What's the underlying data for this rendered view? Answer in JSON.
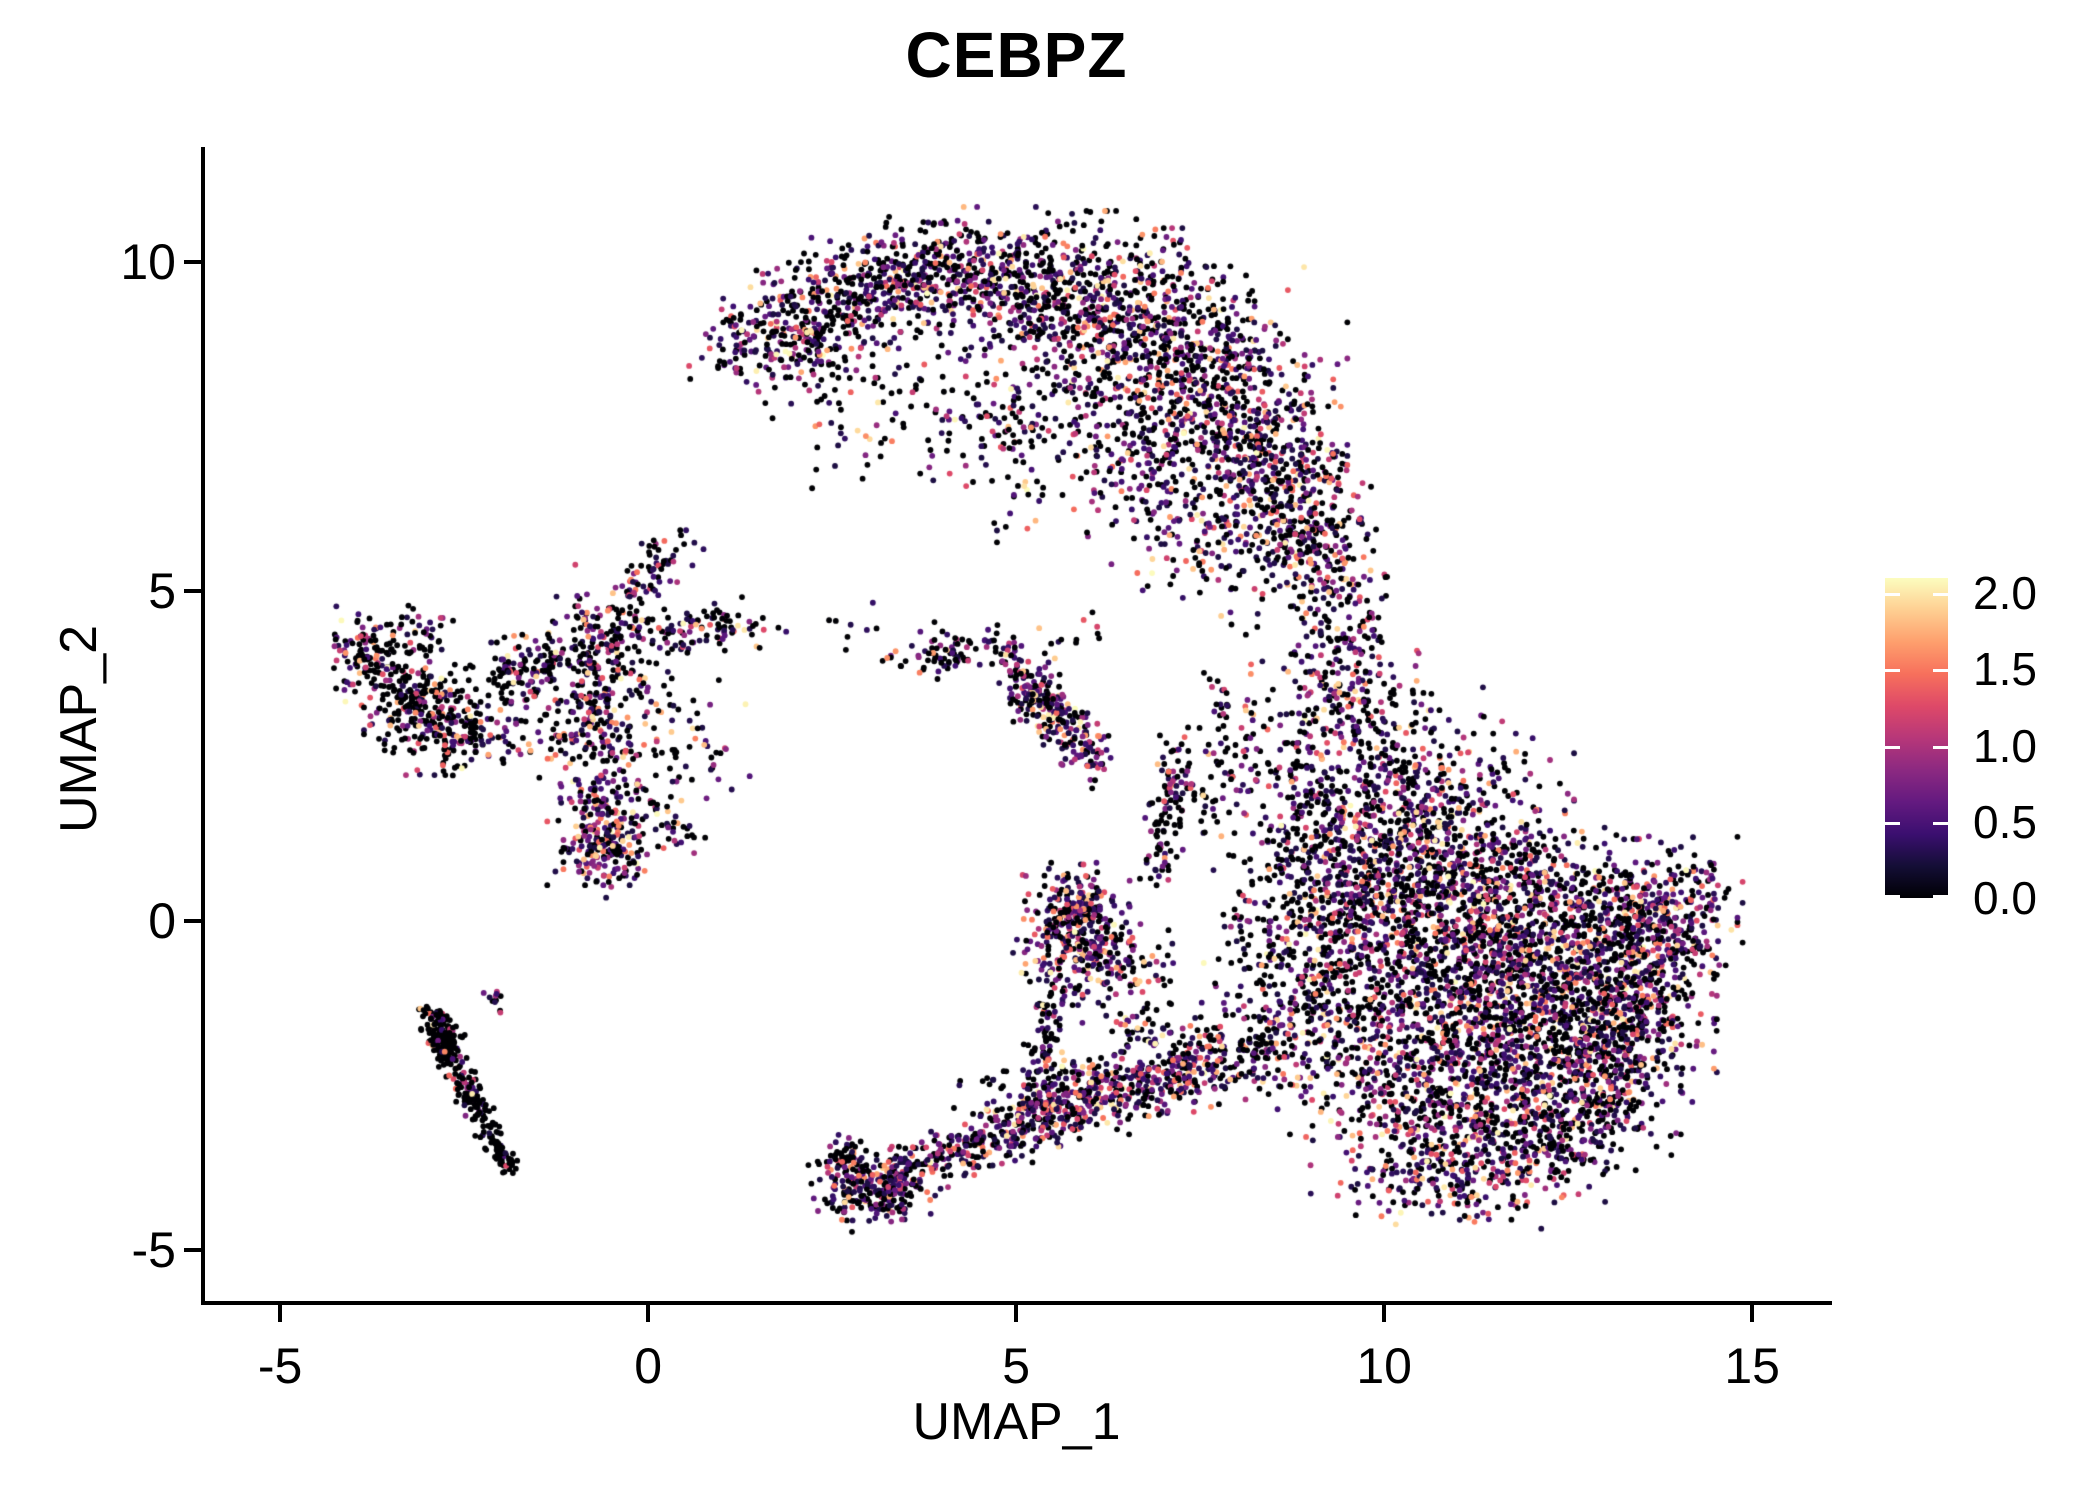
{
  "figure": {
    "title": "CEBPZ"
  },
  "colors": {
    "background": "#ffffff",
    "axis": "#000000",
    "text": "#000000",
    "colorbar_tick": "#ffffff"
  },
  "chart_data": {
    "type": "scatter",
    "title": "CEBPZ",
    "xlabel": "UMAP_1",
    "ylabel": "UMAP_2",
    "grid": false,
    "x_range": [
      -6.02,
      16.03
    ],
    "y_range": [
      -5.8,
      11.74
    ],
    "x_ticks": [
      {
        "label": "-5",
        "value": -5
      },
      {
        "label": "0",
        "value": 0
      },
      {
        "label": "5",
        "value": 5
      },
      {
        "label": "10",
        "value": 10
      },
      {
        "label": "15",
        "value": 15
      }
    ],
    "y_ticks": [
      {
        "label": "-5",
        "value": -5
      },
      {
        "label": "0",
        "value": 0
      },
      {
        "label": "5",
        "value": 5
      },
      {
        "label": "10",
        "value": 10
      }
    ],
    "colorbar": {
      "position": "right",
      "colormap": "magma",
      "vmin": 0.0,
      "vmax": 2.1,
      "ticks": [
        {
          "label": "0.0",
          "value": 0.0
        },
        {
          "label": "0.5",
          "value": 0.5
        },
        {
          "label": "1.0",
          "value": 1.0
        },
        {
          "label": "1.5",
          "value": 1.5
        },
        {
          "label": "2.0",
          "value": 2.0
        }
      ]
    },
    "palette_stops": [
      "#000004",
      "#140e36",
      "#3b0f70",
      "#641a80",
      "#8c2981",
      "#b73779",
      "#de4968",
      "#f7705c",
      "#fe9f6d",
      "#fecf92",
      "#fcfdbf"
    ],
    "point": {
      "radius_px": 2.9,
      "zero_color": "#000004"
    },
    "seed": 42,
    "value_dist": {
      "vmin": 0.25,
      "vmax": 2.1,
      "power": 2.2
    },
    "clusters": [
      {
        "k": "b",
        "p": [
          1.35,
          8.75,
          0.35,
          0.3
        ],
        "n": 90,
        "p0": 0.42
      },
      {
        "k": "b",
        "p": [
          2.1,
          9.2,
          0.45,
          0.4
        ],
        "n": 160,
        "p0": 0.42
      },
      {
        "k": "b",
        "p": [
          2.9,
          9.55,
          0.5,
          0.38
        ],
        "n": 180,
        "p0": 0.42
      },
      {
        "k": "b",
        "p": [
          3.8,
          9.8,
          0.55,
          0.4
        ],
        "n": 220,
        "p0": 0.42
      },
      {
        "k": "b",
        "p": [
          4.8,
          9.75,
          0.6,
          0.45
        ],
        "n": 260,
        "p0": 0.42
      },
      {
        "k": "b",
        "p": [
          5.8,
          9.45,
          0.6,
          0.55
        ],
        "n": 300,
        "p0": 0.42
      },
      {
        "k": "b",
        "p": [
          6.8,
          8.95,
          0.6,
          0.65
        ],
        "n": 320,
        "p0": 0.42
      },
      {
        "k": "b",
        "p": [
          7.6,
          8.25,
          0.55,
          0.7
        ],
        "n": 300,
        "p0": 0.42
      },
      {
        "k": "b",
        "p": [
          8.3,
          7.4,
          0.5,
          0.7
        ],
        "n": 280,
        "p0": 0.42
      },
      {
        "k": "b",
        "p": [
          8.8,
          6.4,
          0.45,
          0.6
        ],
        "n": 220,
        "p0": 0.42
      },
      {
        "k": "b",
        "p": [
          9.05,
          5.6,
          0.35,
          0.45
        ],
        "n": 120,
        "p0": 0.42
      },
      {
        "k": "b",
        "p": [
          2.25,
          8.55,
          0.4,
          0.3
        ],
        "n": 50,
        "p0": 0.5
      },
      {
        "k": "b",
        "p": [
          3.3,
          8.2,
          0.8,
          0.55
        ],
        "n": 70,
        "p0": 0.55
      },
      {
        "k": "b",
        "p": [
          4.3,
          7.6,
          0.7,
          0.5
        ],
        "n": 55,
        "p0": 0.55
      },
      {
        "k": "b",
        "p": [
          5.3,
          7.9,
          0.6,
          0.6
        ],
        "n": 70,
        "p0": 0.5
      },
      {
        "k": "b",
        "p": [
          6.3,
          7.5,
          0.6,
          0.7
        ],
        "n": 150,
        "p0": 0.42
      },
      {
        "k": "b",
        "p": [
          7.2,
          6.7,
          0.55,
          0.75
        ],
        "n": 160,
        "p0": 0.42
      },
      {
        "k": "b",
        "p": [
          7.95,
          5.9,
          0.5,
          0.65
        ],
        "n": 120,
        "p0": 0.42
      },
      {
        "k": "b",
        "p": [
          5.0,
          6.9,
          0.9,
          0.5
        ],
        "n": 40,
        "p0": 0.55
      },
      {
        "k": "b",
        "p": [
          2.8,
          7.0,
          0.4,
          0.4
        ],
        "n": 14,
        "p0": 0.5
      },
      {
        "k": "b",
        "p": [
          9.35,
          4.9,
          0.35,
          0.55
        ],
        "n": 90,
        "p0": 0.45
      },
      {
        "k": "b",
        "p": [
          9.6,
          3.9,
          0.4,
          0.5
        ],
        "n": 110,
        "p0": 0.45
      },
      {
        "k": "b",
        "p": [
          9.2,
          3.1,
          0.5,
          0.45
        ],
        "n": 100,
        "p0": 0.45
      },
      {
        "k": "b",
        "p": [
          8.45,
          2.3,
          0.5,
          0.4
        ],
        "n": 60,
        "p0": 0.5
      },
      {
        "k": "b",
        "p": [
          8.05,
          3.05,
          0.35,
          0.35
        ],
        "n": 40,
        "p0": 0.55
      },
      {
        "k": "b",
        "p": [
          10.2,
          2.2,
          0.6,
          0.6
        ],
        "n": 220,
        "p0": 0.4
      },
      {
        "k": "b",
        "p": [
          10.9,
          1.4,
          0.7,
          0.6
        ],
        "n": 260,
        "p0": 0.4
      },
      {
        "k": "b",
        "p": [
          10.1,
          0.6,
          0.7,
          0.6
        ],
        "n": 260,
        "p0": 0.4
      },
      {
        "k": "b",
        "p": [
          11.6,
          0.6,
          0.9,
          0.6
        ],
        "n": 320,
        "p0": 0.4
      },
      {
        "k": "b",
        "p": [
          10.6,
          -0.4,
          0.9,
          0.7
        ],
        "n": 400,
        "p0": 0.4
      },
      {
        "k": "b",
        "p": [
          11.8,
          -0.6,
          0.9,
          0.7
        ],
        "n": 400,
        "p0": 0.4
      },
      {
        "k": "b",
        "p": [
          12.8,
          -0.2,
          0.7,
          0.6
        ],
        "n": 280,
        "p0": 0.4
      },
      {
        "k": "b",
        "p": [
          13.6,
          0.1,
          0.5,
          0.5
        ],
        "n": 200,
        "p0": 0.4
      },
      {
        "k": "b",
        "p": [
          14.15,
          0.25,
          0.3,
          0.4
        ],
        "n": 80,
        "p0": 0.4
      },
      {
        "k": "b",
        "p": [
          13.8,
          -0.8,
          0.35,
          0.5
        ],
        "n": 120,
        "p0": 0.4
      },
      {
        "k": "b",
        "p": [
          12.6,
          -1.4,
          0.8,
          0.7
        ],
        "n": 360,
        "p0": 0.4
      },
      {
        "k": "b",
        "p": [
          11.3,
          -1.6,
          0.8,
          0.7
        ],
        "n": 380,
        "p0": 0.4
      },
      {
        "k": "b",
        "p": [
          13.4,
          -1.6,
          0.45,
          0.55
        ],
        "n": 200,
        "p0": 0.4
      },
      {
        "k": "b",
        "p": [
          12.0,
          -2.5,
          0.8,
          0.6
        ],
        "n": 320,
        "p0": 0.4
      },
      {
        "k": "b",
        "p": [
          10.4,
          -2.5,
          0.7,
          0.6
        ],
        "n": 260,
        "p0": 0.4
      },
      {
        "k": "b",
        "p": [
          12.95,
          -2.6,
          0.45,
          0.5
        ],
        "n": 170,
        "p0": 0.4
      },
      {
        "k": "b",
        "p": [
          11.0,
          -3.4,
          0.6,
          0.45
        ],
        "n": 180,
        "p0": 0.4
      },
      {
        "k": "b",
        "p": [
          12.2,
          -3.4,
          0.5,
          0.4
        ],
        "n": 130,
        "p0": 0.4
      },
      {
        "k": "b",
        "p": [
          9.5,
          -1.6,
          0.5,
          0.7
        ],
        "n": 180,
        "p0": 0.42
      },
      {
        "k": "b",
        "p": [
          8.9,
          -0.6,
          0.45,
          0.7
        ],
        "n": 160,
        "p0": 0.55
      },
      {
        "k": "b",
        "p": [
          9.5,
          0.6,
          0.5,
          0.6
        ],
        "n": 170,
        "p0": 0.42
      },
      {
        "k": "b",
        "p": [
          9.0,
          1.5,
          0.45,
          0.5
        ],
        "n": 130,
        "p0": 0.5
      },
      {
        "k": "b",
        "p": [
          8.3,
          0.2,
          0.35,
          0.8
        ],
        "n": 70,
        "p0": 0.6
      },
      {
        "k": "b",
        "p": [
          10.2,
          -4.0,
          0.5,
          0.3
        ],
        "n": 70,
        "p0": 0.4
      },
      {
        "k": "b",
        "p": [
          11.5,
          -4.0,
          0.45,
          0.28
        ],
        "n": 60,
        "p0": 0.4
      },
      {
        "k": "l",
        "p": [
          -0.85,
          4.75,
          -0.55,
          2.2,
          0.25
        ],
        "n": 220,
        "p0": 0.45
      },
      {
        "k": "b",
        "p": [
          -0.65,
          1.5,
          0.3,
          0.4
        ],
        "n": 160,
        "p0": 0.35
      },
      {
        "k": "b",
        "p": [
          -0.55,
          0.95,
          0.25,
          0.25
        ],
        "n": 90,
        "p0": 0.3
      },
      {
        "k": "l",
        "p": [
          -0.6,
          4.45,
          1.55,
          4.45,
          0.2
        ],
        "n": 130,
        "p0": 0.45
      },
      {
        "k": "l",
        "p": [
          -0.3,
          4.9,
          0.4,
          5.75,
          0.16
        ],
        "n": 70,
        "p0": 0.45
      },
      {
        "k": "l",
        "p": [
          -1.1,
          4.0,
          -2.05,
          3.85,
          0.18
        ],
        "n": 80,
        "p0": 0.45
      },
      {
        "k": "b",
        "p": [
          -0.2,
          3.4,
          0.5,
          0.7
        ],
        "n": 90,
        "p0": 0.5
      },
      {
        "k": "b",
        "p": [
          -1.3,
          3.0,
          0.45,
          0.5
        ],
        "n": 80,
        "p0": 0.5
      },
      {
        "k": "b",
        "p": [
          0.3,
          2.6,
          0.45,
          0.5
        ],
        "n": 55,
        "p0": 0.55
      },
      {
        "k": "l",
        "p": [
          -0.35,
          2.0,
          0.55,
          1.25,
          0.15
        ],
        "n": 45,
        "p0": 0.5
      },
      {
        "k": "b",
        "p": [
          -3.85,
          4.05,
          0.25,
          0.3
        ],
        "n": 80,
        "p0": 0.58
      },
      {
        "k": "b",
        "p": [
          -3.3,
          3.6,
          0.35,
          0.35
        ],
        "n": 140,
        "p0": 0.58
      },
      {
        "k": "b",
        "p": [
          -2.9,
          3.05,
          0.4,
          0.35
        ],
        "n": 160,
        "p0": 0.58
      },
      {
        "k": "b",
        "p": [
          -2.4,
          2.8,
          0.3,
          0.25
        ],
        "n": 80,
        "p0": 0.58
      },
      {
        "k": "b",
        "p": [
          -3.3,
          4.35,
          0.3,
          0.18
        ],
        "n": 40,
        "p0": 0.58
      },
      {
        "k": "b",
        "p": [
          -2.0,
          3.55,
          0.28,
          0.28
        ],
        "n": 30,
        "p0": 0.55
      },
      {
        "k": "l",
        "p": [
          -2.95,
          -1.5,
          -1.9,
          -3.75,
          0.09
        ],
        "n": 240,
        "p0": 0.82
      },
      {
        "k": "b",
        "p": [
          -2.75,
          -1.85,
          0.15,
          0.15
        ],
        "n": 50,
        "p0": 0.8
      },
      {
        "k": "l",
        "p": [
          -3.1,
          -1.35,
          -2.7,
          -1.55,
          0.07
        ],
        "n": 30,
        "p0": 0.75
      },
      {
        "k": "b",
        "p": [
          -2.0,
          -1.2,
          0.1,
          0.1
        ],
        "n": 12,
        "p0": 0.3
      },
      {
        "k": "b",
        "p": [
          4.05,
          4.1,
          0.22,
          0.18
        ],
        "n": 60,
        "p0": 0.5
      },
      {
        "k": "b",
        "p": [
          3.35,
          3.95,
          0.08,
          0.06
        ],
        "n": 8,
        "p0": 0.6
      },
      {
        "k": "b",
        "p": [
          2.7,
          4.45,
          0.3,
          0.2
        ],
        "n": 8,
        "p0": 0.5
      },
      {
        "k": "l",
        "p": [
          5.1,
          3.6,
          6.05,
          2.45,
          0.16
        ],
        "n": 200,
        "p0": 0.35
      },
      {
        "k": "b",
        "p": [
          5.25,
          3.5,
          0.2,
          0.2
        ],
        "n": 60,
        "p0": 0.35
      },
      {
        "k": "l",
        "p": [
          5.0,
          3.75,
          4.72,
          4.35,
          0.12
        ],
        "n": 40,
        "p0": 0.45
      },
      {
        "k": "b",
        "p": [
          5.85,
          4.3,
          0.28,
          0.18
        ],
        "n": 12,
        "p0": 0.5
      },
      {
        "k": "b",
        "p": [
          5.75,
          -0.2,
          0.33,
          0.45
        ],
        "n": 280,
        "p0": 0.3
      },
      {
        "k": "b",
        "p": [
          6.2,
          -0.6,
          0.25,
          0.3
        ],
        "n": 80,
        "p0": 0.35
      },
      {
        "k": "b",
        "p": [
          5.9,
          0.4,
          0.2,
          0.2
        ],
        "n": 50,
        "p0": 0.4
      },
      {
        "k": "l",
        "p": [
          5.5,
          -1.1,
          5.35,
          -2.2,
          0.12
        ],
        "n": 70,
        "p0": 0.5
      },
      {
        "k": "b",
        "p": [
          6.8,
          -0.7,
          0.3,
          0.25
        ],
        "n": 30,
        "p0": 0.55
      },
      {
        "k": "l",
        "p": [
          6.9,
          0.7,
          7.15,
          2.6,
          0.13
        ],
        "n": 90,
        "p0": 0.55
      },
      {
        "k": "b",
        "p": [
          7.45,
          1.9,
          0.25,
          0.3
        ],
        "n": 40,
        "p0": 0.55
      },
      {
        "k": "b",
        "p": [
          2.85,
          -4.0,
          0.28,
          0.3
        ],
        "n": 150,
        "p0": 0.45
      },
      {
        "k": "b",
        "p": [
          3.3,
          -4.1,
          0.25,
          0.18
        ],
        "n": 90,
        "p0": 0.4
      },
      {
        "k": "l",
        "p": [
          3.3,
          -3.9,
          4.6,
          -3.35,
          0.18
        ],
        "n": 180,
        "p0": 0.32
      },
      {
        "k": "l",
        "p": [
          4.6,
          -3.35,
          6.2,
          -2.7,
          0.22
        ],
        "n": 240,
        "p0": 0.32
      },
      {
        "k": "l",
        "p": [
          6.2,
          -2.7,
          7.8,
          -2.1,
          0.26
        ],
        "n": 280,
        "p0": 0.32
      },
      {
        "k": "l",
        "p": [
          4.9,
          -2.95,
          6.1,
          -2.35,
          0.15
        ],
        "n": 90,
        "p0": 0.32
      },
      {
        "k": "b",
        "p": [
          8.3,
          -1.9,
          0.45,
          0.4
        ],
        "n": 160,
        "p0": 0.4
      },
      {
        "k": "b",
        "p": [
          5.3,
          -2.4,
          0.3,
          0.25
        ],
        "n": 40,
        "p0": 0.45
      },
      {
        "k": "b",
        "p": [
          6.7,
          -1.7,
          0.35,
          0.3
        ],
        "n": 60,
        "p0": 0.45
      },
      {
        "k": "b",
        "p": [
          2.62,
          -3.6,
          0.12,
          0.15
        ],
        "n": 30,
        "p0": 0.5
      },
      {
        "k": "b",
        "p": [
          4.7,
          -2.6,
          0.28,
          0.22
        ],
        "n": 20,
        "p0": 0.5
      }
    ]
  }
}
